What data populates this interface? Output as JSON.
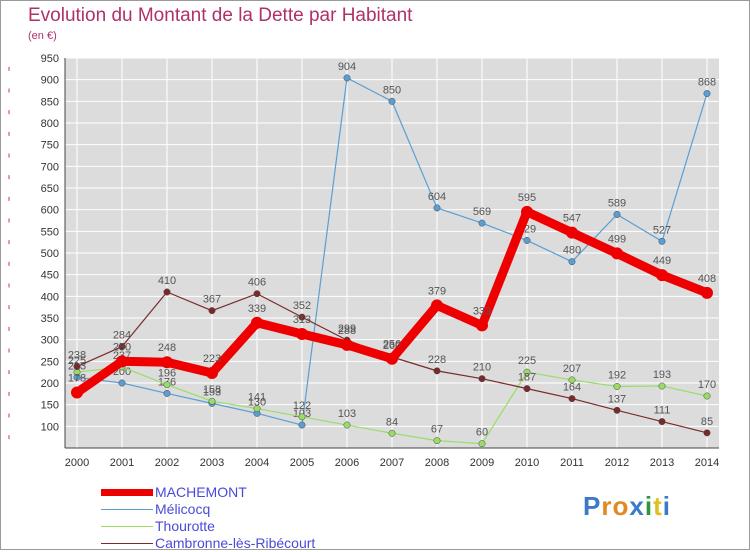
{
  "title": "Evolution du Montant de la Dette par Habitant",
  "unit": "(en €)",
  "logo": "Proxiti",
  "chart_data": {
    "type": "line",
    "x": [
      "2000",
      "2001",
      "2002",
      "2003",
      "2004",
      "2005",
      "2006",
      "2007",
      "2008",
      "2009",
      "2010",
      "2011",
      "2012",
      "2013",
      "2014"
    ],
    "ylim": [
      50,
      950
    ],
    "yticks": [
      100,
      150,
      200,
      250,
      300,
      350,
      400,
      450,
      500,
      550,
      600,
      650,
      700,
      750,
      800,
      850,
      900,
      950
    ],
    "series": [
      {
        "name": "MACHEMONT",
        "color": "#ee0000",
        "values": [
          178,
          250,
          248,
          223,
          339,
          313,
          288,
          256,
          379,
          333,
          595,
          547,
          499,
          449,
          408
        ]
      },
      {
        "name": "Mélicocq",
        "color": "#5a9fd4",
        "values": [
          213,
          200,
          176,
          153,
          130,
          103,
          904,
          850,
          604,
          569,
          529,
          480,
          589,
          527,
          868
        ]
      },
      {
        "name": "Thourotte",
        "color": "#99dd66",
        "values": [
          225,
          237,
          196,
          158,
          141,
          122,
          103,
          84,
          67,
          60,
          225,
          207,
          192,
          193,
          170
        ]
      },
      {
        "name": "Cambronne-lès-Ribécourt",
        "color": "#7a2a2a",
        "values": [
          238,
          284,
          410,
          367,
          406,
          352,
          299,
          260,
          228,
          210,
          187,
          164,
          137,
          111,
          85
        ]
      }
    ]
  }
}
